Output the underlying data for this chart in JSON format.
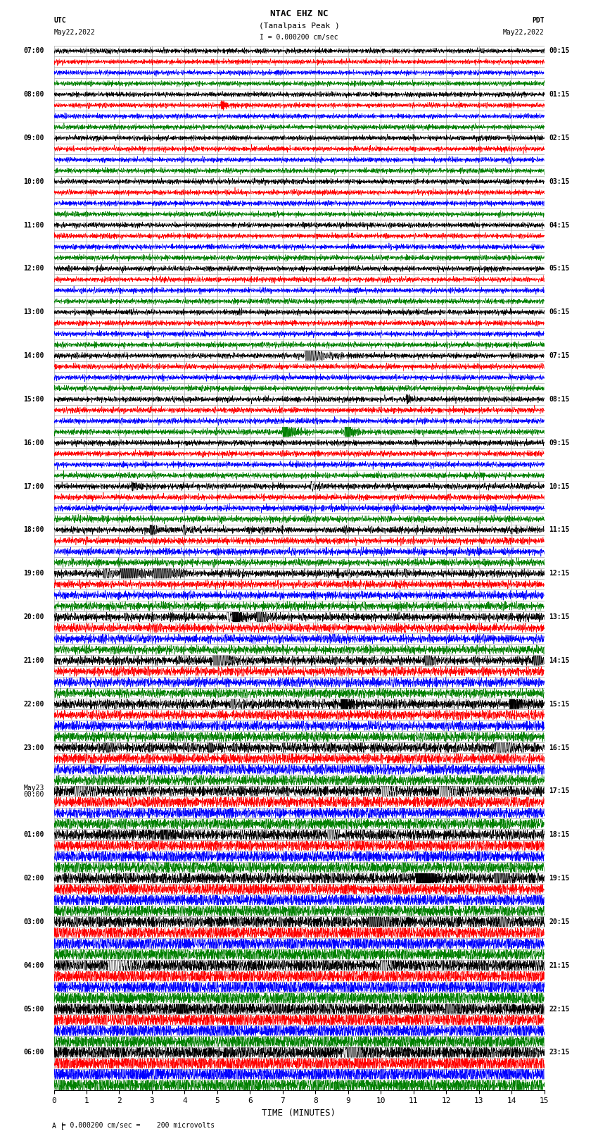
{
  "title_line1": "NTAC EHZ NC",
  "title_line2": "(Tanalpais Peak )",
  "scale_text": "I = 0.000200 cm/sec",
  "left_header": "UTC",
  "left_date": "May22,2022",
  "right_header": "PDT",
  "right_date": "May22,2022",
  "bottom_note": "= 0.000200 cm/sec =    200 microvolts",
  "xlabel": "TIME (MINUTES)",
  "utc_labels": [
    "07:00",
    "",
    "",
    "",
    "08:00",
    "",
    "",
    "",
    "09:00",
    "",
    "",
    "",
    "10:00",
    "",
    "",
    "",
    "11:00",
    "",
    "",
    "",
    "12:00",
    "",
    "",
    "",
    "13:00",
    "",
    "",
    "",
    "14:00",
    "",
    "",
    "",
    "15:00",
    "",
    "",
    "",
    "16:00",
    "",
    "",
    "",
    "17:00",
    "",
    "",
    "",
    "18:00",
    "",
    "",
    "",
    "19:00",
    "",
    "",
    "",
    "20:00",
    "",
    "",
    "",
    "21:00",
    "",
    "",
    "",
    "22:00",
    "",
    "",
    "",
    "23:00",
    "",
    "",
    "",
    "May23\n00:00",
    "",
    "",
    "",
    "01:00",
    "",
    "",
    "",
    "02:00",
    "",
    "",
    "",
    "03:00",
    "",
    "",
    "",
    "04:00",
    "",
    "",
    "",
    "05:00",
    "",
    "",
    "",
    "06:00",
    "",
    "",
    ""
  ],
  "pdt_labels": [
    "00:15",
    "",
    "",
    "",
    "01:15",
    "",
    "",
    "",
    "02:15",
    "",
    "",
    "",
    "03:15",
    "",
    "",
    "",
    "04:15",
    "",
    "",
    "",
    "05:15",
    "",
    "",
    "",
    "06:15",
    "",
    "",
    "",
    "07:15",
    "",
    "",
    "",
    "08:15",
    "",
    "",
    "",
    "09:15",
    "",
    "",
    "",
    "10:15",
    "",
    "",
    "",
    "11:15",
    "",
    "",
    "",
    "12:15",
    "",
    "",
    "",
    "13:15",
    "",
    "",
    "",
    "14:15",
    "",
    "",
    "",
    "15:15",
    "",
    "",
    "",
    "16:15",
    "",
    "",
    "",
    "17:15",
    "",
    "",
    "",
    "18:15",
    "",
    "",
    "",
    "19:15",
    "",
    "",
    "",
    "20:15",
    "",
    "",
    "",
    "21:15",
    "",
    "",
    "",
    "22:15",
    "",
    "",
    "",
    "23:15",
    "",
    "",
    ""
  ],
  "trace_colors": [
    "black",
    "red",
    "blue",
    "green"
  ],
  "n_rows": 96,
  "n_minutes": 15,
  "samples_per_minute": 200,
  "background_color": "white",
  "grid_color": "#aaaaaa",
  "grid_linewidth": 0.5,
  "trace_linewidth": 0.4,
  "font_size_labels": 7,
  "font_size_title": 9,
  "font_size_axis": 8
}
